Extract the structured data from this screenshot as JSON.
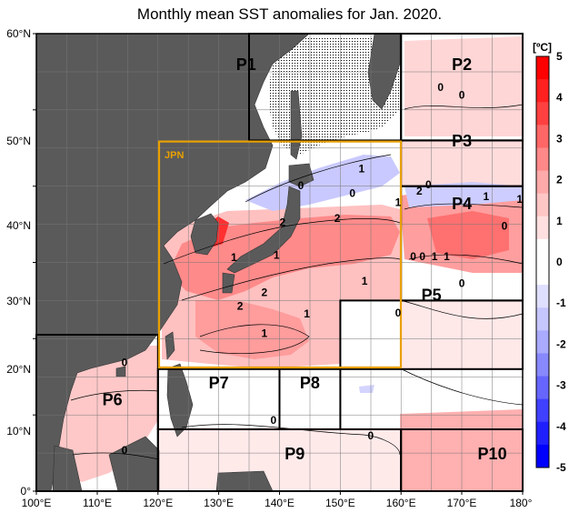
{
  "title": "Monthly mean SST anomalies for Jan. 2020.",
  "lat_labels": [
    "60°N",
    "50°N",
    "40°N",
    "30°N",
    "20°N",
    "10°N",
    "0°"
  ],
  "lon_labels": [
    "100°E",
    "110°E",
    "120°E",
    "130°E",
    "140°E",
    "150°E",
    "160°E",
    "170°E",
    "180°"
  ],
  "jpn_label": "JPN",
  "regions": [
    {
      "id": "p1",
      "label": "P1",
      "lon": 134.5,
      "lat": 55.2
    },
    {
      "id": "p2",
      "label": "P2",
      "lon": 170,
      "lat": 55.2
    },
    {
      "id": "p3",
      "label": "P3",
      "lon": 170,
      "lat": 45.2
    },
    {
      "id": "p4",
      "label": "P4",
      "lon": 170,
      "lat": 37
    },
    {
      "id": "p5",
      "label": "P5",
      "lon": 165,
      "lat": 25
    },
    {
      "id": "p6",
      "label": "P6",
      "lon": 112.5,
      "lat": 11.3
    },
    {
      "id": "p7",
      "label": "P7",
      "lon": 130,
      "lat": 13.5
    },
    {
      "id": "p8",
      "label": "P8",
      "lon": 145,
      "lat": 13.5
    },
    {
      "id": "p9",
      "label": "P9",
      "lon": 142.5,
      "lat": 4.2
    },
    {
      "id": "p10",
      "label": "P10",
      "lon": 175,
      "lat": 4.2
    }
  ],
  "contour_labels": [
    {
      "text": "0",
      "lon": 166.5,
      "lat": 52.5
    },
    {
      "text": "0",
      "lon": 170,
      "lat": 51.5
    },
    {
      "text": "1",
      "lon": 153.5,
      "lat": 41.8
    },
    {
      "text": "0",
      "lon": 143.5,
      "lat": 39.6
    },
    {
      "text": "0",
      "lon": 152,
      "lat": 38.6
    },
    {
      "text": "2",
      "lon": 163,
      "lat": 38.9
    },
    {
      "text": "0",
      "lon": 164.5,
      "lat": 39.7
    },
    {
      "text": "1",
      "lon": 159.5,
      "lat": 37.4
    },
    {
      "text": "1",
      "lon": 174,
      "lat": 38.2
    },
    {
      "text": "1",
      "lon": 179.5,
      "lat": 37.8
    },
    {
      "text": "2",
      "lon": 140.5,
      "lat": 34.8
    },
    {
      "text": "2",
      "lon": 149.5,
      "lat": 35.3
    },
    {
      "text": "0",
      "lon": 177,
      "lat": 34.3
    },
    {
      "text": "1",
      "lon": 132.5,
      "lat": 30.2
    },
    {
      "text": "1",
      "lon": 139.5,
      "lat": 30.5
    },
    {
      "text": "0",
      "lon": 162,
      "lat": 30.3
    },
    {
      "text": "0",
      "lon": 163.5,
      "lat": 30.3
    },
    {
      "text": "1",
      "lon": 165.5,
      "lat": 30.3
    },
    {
      "text": "1",
      "lon": 167.5,
      "lat": 30.3
    },
    {
      "text": "1",
      "lon": 154,
      "lat": 27.1
    },
    {
      "text": "0",
      "lon": 170,
      "lat": 26.8
    },
    {
      "text": "2",
      "lon": 137.5,
      "lat": 25.6
    },
    {
      "text": "2",
      "lon": 133.5,
      "lat": 23.8
    },
    {
      "text": "1",
      "lon": 144.5,
      "lat": 22.8
    },
    {
      "text": "1",
      "lon": 137.5,
      "lat": 20.2
    },
    {
      "text": "0",
      "lon": 159.5,
      "lat": 22.9
    },
    {
      "text": "0",
      "lon": 114.5,
      "lat": 16.4
    },
    {
      "text": "0",
      "lon": 139,
      "lat": 8.8
    },
    {
      "text": "0",
      "lon": 114.5,
      "lat": 4.9
    },
    {
      "text": "0",
      "lon": 155,
      "lat": 6.8
    }
  ],
  "colorbar": {
    "unit": "[ºC]",
    "labels": [
      "5",
      "4",
      "3",
      "2",
      "1",
      "0",
      "-1",
      "-2",
      "-3",
      "-4",
      "-5"
    ],
    "colors": [
      "#ff0000",
      "#ff2020",
      "#ff4040",
      "#ff6666",
      "#ff8888",
      "#ffaaaa",
      "#ffc6c6",
      "#ffdfdf",
      "#ffffff",
      "#ffffff",
      "#dfdfff",
      "#c6c6ff",
      "#aaaaff",
      "#8888ff",
      "#6666ff",
      "#4040ff",
      "#2020ff",
      "#0000ff"
    ]
  },
  "colors": {
    "land": "#5a5a5a",
    "frame": "#000000",
    "jpn_box": "#e8a000",
    "sea": "#ffffff"
  }
}
